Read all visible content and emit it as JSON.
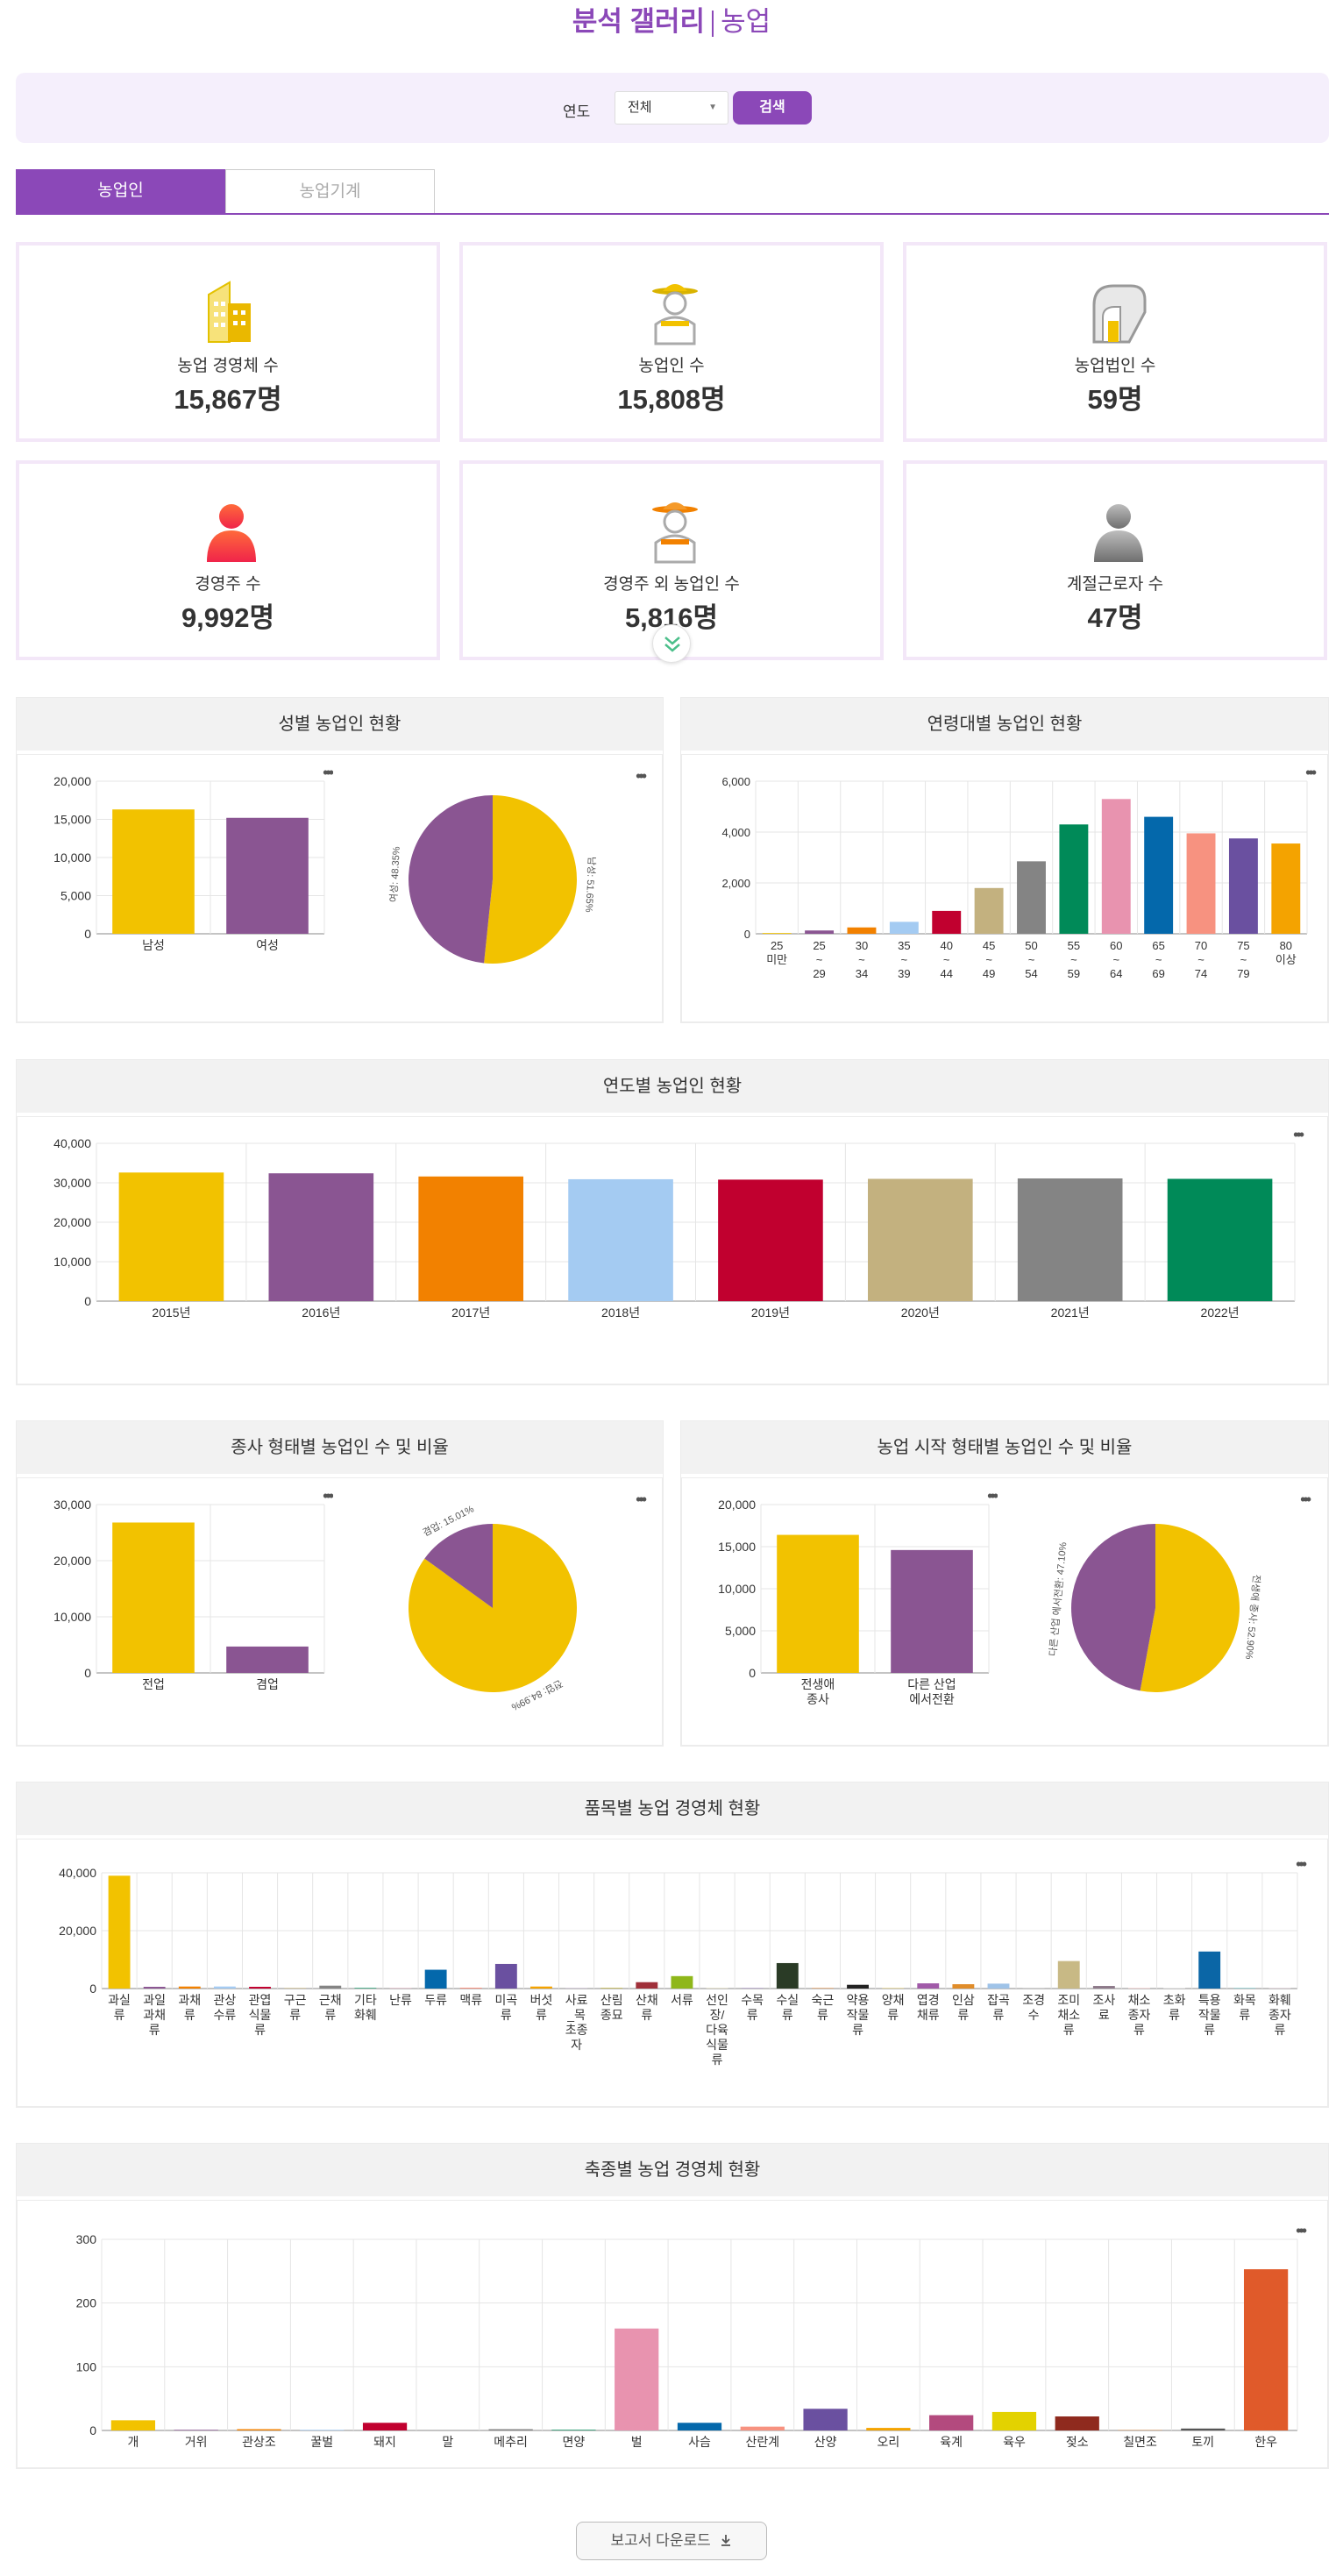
{
  "header": {
    "title": "분석 갤러리",
    "subtitle": "농업"
  },
  "search": {
    "year_label": "연도",
    "year_value": "전체",
    "search_button": "검색"
  },
  "tabs": [
    {
      "label": "농업인"
    },
    {
      "label": "농업기계"
    }
  ],
  "stats": [
    {
      "label": "농업 경영체 수",
      "value": "15,867명",
      "icon": "building-icon"
    },
    {
      "label": "농업인 수",
      "value": "15,808명",
      "icon": "farmer-icon"
    },
    {
      "label": "농업법인 수",
      "value": "59명",
      "icon": "corporation-icon"
    },
    {
      "label": "경영주 수",
      "value": "9,992명",
      "icon": "owner-person-icon"
    },
    {
      "label": "경영주 외 농업인 수",
      "value": "5,816명",
      "icon": "worker-icon"
    },
    {
      "label": "계절근로자 수",
      "value": "47명",
      "icon": "seasonal-worker-icon"
    }
  ],
  "colors": {
    "accent": "#8b48b8",
    "yellow": "#f2c200",
    "purple": "#8a5592",
    "orange": "#f28100",
    "lightblue": "#a4cbf2",
    "crimson": "#c1002f",
    "khaki": "#c3b17f",
    "gray": "#848484",
    "green": "#008a58",
    "pink": "#e893af",
    "blue": "#0468ab",
    "salmon": "#f79280",
    "violet": "#6a50a0",
    "amber": "#f4a300"
  },
  "panels": {
    "gender": "성별 농업인 현황",
    "age": "연령대별 농업인 현황",
    "yearly": "연도별 농업인 현황",
    "worktype": "종사 형태별 농업인 수 및 비율",
    "starttype": "농업 시작 형태별 농업인 수 및 비율",
    "crop": "품목별 농업 경영체 현황",
    "livestock": "축종별 농업 경영체 현황"
  },
  "download_button": "보고서 다운로드",
  "chart_data": [
    {
      "type": "bar",
      "title": "성별 농업인 현황",
      "categories": [
        "남성",
        "여성"
      ],
      "values": [
        16300,
        15200
      ],
      "ylim": [
        0,
        20000
      ],
      "yticks": [
        "0",
        "5,000",
        "10,000",
        "15,000",
        "20,000"
      ]
    },
    {
      "type": "pie",
      "title": "성별 농업인 현황",
      "slices": [
        {
          "label": "남성",
          "value": 51.65,
          "text": "남성: 51.65%"
        },
        {
          "label": "여성",
          "value": 48.35,
          "text": "여성: 48.35%"
        }
      ]
    },
    {
      "type": "bar",
      "title": "연령대별 농업인 현황",
      "categories": [
        "25 미만",
        "25 ~ 29",
        "30 ~ 34",
        "35 ~ 39",
        "40 ~ 44",
        "45 ~ 49",
        "50 ~ 54",
        "55 ~ 59",
        "60 ~ 64",
        "65 ~ 69",
        "70 ~ 74",
        "75 ~ 79",
        "80 이상"
      ],
      "values": [
        30,
        130,
        250,
        470,
        900,
        1800,
        2850,
        4300,
        5300,
        4600,
        3950,
        3750,
        3550
      ],
      "ylim": [
        0,
        6000
      ],
      "yticks": [
        "0",
        "2,000",
        "4,000",
        "6,000"
      ]
    },
    {
      "type": "bar",
      "title": "연도별 농업인 현황",
      "categories": [
        "2015년",
        "2016년",
        "2017년",
        "2018년",
        "2019년",
        "2020년",
        "2021년",
        "2022년"
      ],
      "values": [
        32600,
        32400,
        31600,
        30900,
        30800,
        31000,
        31100,
        31000
      ],
      "ylim": [
        0,
        40000
      ],
      "yticks": [
        "0",
        "10,000",
        "20,000",
        "30,000",
        "40,000"
      ]
    },
    {
      "type": "bar",
      "title": "종사 형태별 농업인 수 및 비율",
      "categories": [
        "전업",
        "겸업"
      ],
      "values": [
        26800,
        4700
      ],
      "ylim": [
        0,
        30000
      ],
      "yticks": [
        "0",
        "10,000",
        "20,000",
        "30,000"
      ]
    },
    {
      "type": "pie",
      "title": "종사 형태별 농업인 수 및 비율",
      "slices": [
        {
          "label": "전업",
          "value": 84.99,
          "text": "전업: 84.99%"
        },
        {
          "label": "겸업",
          "value": 15.01,
          "text": "겸업: 15.01%"
        }
      ]
    },
    {
      "type": "bar",
      "title": "농업 시작 형태별 농업인 수 및 비율",
      "categories": [
        "전생애 종사",
        "다른 산업 에서전환"
      ],
      "values": [
        16400,
        14600
      ],
      "ylim": [
        0,
        20000
      ],
      "yticks": [
        "0",
        "5,000",
        "10,000",
        "15,000",
        "20,000"
      ]
    },
    {
      "type": "pie",
      "title": "농업 시작 형태별 농업인 수 및 비율",
      "slices": [
        {
          "label": "전생애 종사",
          "value": 52.9,
          "text": "전생애 종사: 52.90%"
        },
        {
          "label": "다른 산업 에서전환",
          "value": 47.1,
          "text": "다른 산업 에서전환: 47.10%"
        }
      ]
    },
    {
      "type": "bar",
      "title": "품목별 농업 경영체 현황",
      "categories": [
        "과실류",
        "과일 과채류",
        "과채류",
        "관상 수류",
        "관엽 식물류",
        "구근류",
        "근채류",
        "기타 화훼",
        "난류",
        "두류",
        "맥류",
        "미곡류",
        "버섯류",
        "사료_목초종자",
        "산림 종묘",
        "산채류",
        "서류",
        "선인장/다육식물류",
        "수목류",
        "수실류",
        "숙근류",
        "약용 작물류",
        "양채류",
        "엽경채류",
        "인삼류",
        "잡곡류",
        "조경수",
        "조미 채소류",
        "조사료",
        "채소 종자류",
        "초화류",
        "특용 작물류",
        "화목류",
        "화훼 종자류"
      ],
      "values": [
        39000,
        600,
        700,
        700,
        600,
        200,
        1000,
        200,
        100,
        6500,
        300,
        8500,
        700,
        100,
        300,
        2200,
        4300,
        200,
        200,
        8800,
        300,
        1300,
        200,
        1800,
        1500,
        1700,
        200,
        9500,
        900,
        200,
        200,
        12800,
        300,
        100
      ],
      "ylim": [
        0,
        40000
      ],
      "yticks": [
        "0",
        "20,000",
        "40,000"
      ]
    },
    {
      "type": "bar",
      "title": "축종별 농업 경영체 현황",
      "categories": [
        "개",
        "거위",
        "관상조",
        "꿀벌",
        "돼지",
        "말",
        "메추리",
        "면양",
        "벌",
        "사슴",
        "산란계",
        "산양",
        "오리",
        "육계",
        "육우",
        "젖소",
        "칠면조",
        "토끼",
        "한우"
      ],
      "values": [
        16,
        1,
        2,
        1,
        12,
        0,
        2,
        1,
        160,
        12,
        6,
        34,
        4,
        24,
        29,
        22,
        1,
        3,
        253
      ],
      "ylim": [
        0,
        300
      ],
      "yticks": [
        "0",
        "100",
        "200",
        "300"
      ]
    }
  ]
}
